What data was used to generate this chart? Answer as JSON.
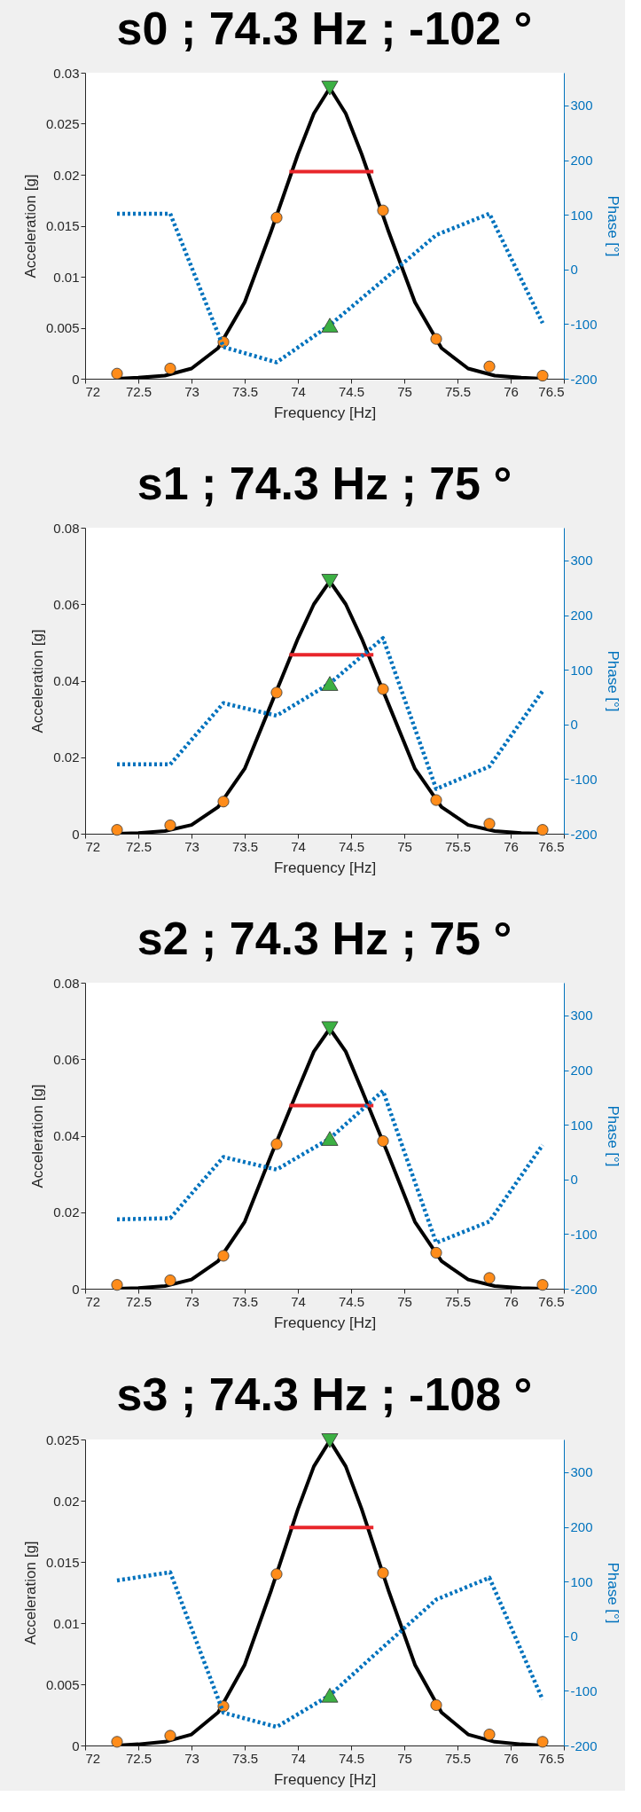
{
  "chart_data": [
    {
      "type": "line",
      "title": "s0 ; 74.3 Hz ; -102 °",
      "xlabel": "Frequency [Hz]",
      "ylabel": "Acceleration [g]",
      "y2label": "Phase [°]",
      "xlim": [
        72,
        76.5
      ],
      "xticks": [
        72,
        72.5,
        73,
        73.5,
        74,
        74.5,
        75,
        75.5,
        76,
        76.5
      ],
      "ylim": [
        0,
        0.03
      ],
      "yticks": [
        0,
        0.005,
        0.01,
        0.015,
        0.02,
        0.025,
        0.03
      ],
      "y2lim": [
        -200,
        360
      ],
      "y2ticks": [
        -200,
        -100,
        0,
        100,
        200,
        300
      ],
      "series": [
        {
          "color": "#000000",
          "x": [
            72.3,
            72.5,
            72.75,
            73,
            73.25,
            73.5,
            73.75,
            74,
            74.15,
            74.3,
            74.45,
            74.6,
            74.85,
            75.1,
            75.35,
            75.6,
            75.85,
            76.1,
            76.3
          ],
          "values": [
            0,
            0.0001,
            0.0003,
            0.001,
            0.003,
            0.0075,
            0.0145,
            0.022,
            0.026,
            0.0285,
            0.026,
            0.022,
            0.0145,
            0.0075,
            0.003,
            0.001,
            0.0003,
            0.0001,
            0
          ]
        },
        {
          "color": "#e8262b",
          "x": [
            73.92,
            74.71
          ],
          "values": [
            0.0203,
            0.0203
          ]
        },
        {
          "type": "scatter",
          "color": "#ff8c1a",
          "marker": "circle",
          "x": [
            72.3,
            72.8,
            73.3,
            73.8,
            74.8,
            75.3,
            75.8,
            76.3
          ],
          "values": [
            0.0005,
            0.001,
            0.0036,
            0.0158,
            0.0165,
            0.0039,
            0.0012,
            0.0003
          ]
        },
        {
          "type": "scatter",
          "color": "#3cb043",
          "marker": "triangle-down",
          "x": [
            74.3
          ],
          "values": [
            0.0285
          ]
        },
        {
          "axis": "y2",
          "color": "#0072bd",
          "line_style": "dotted",
          "x": [
            72.3,
            72.8,
            73.3,
            73.8,
            74.3,
            74.8,
            75.3,
            75.8,
            76.3
          ],
          "values": [
            102,
            102,
            -142,
            -170,
            -102,
            -20,
            63,
            102,
            -98
          ]
        },
        {
          "type": "scatter",
          "axis": "y2",
          "color": "#3cb043",
          "marker": "triangle",
          "x": [
            74.3
          ],
          "values": [
            -102
          ]
        }
      ]
    },
    {
      "type": "line",
      "title": "s1 ; 74.3 Hz ; 75 °",
      "xlabel": "Frequency [Hz]",
      "ylabel": "Acceleration [g]",
      "y2label": "Phase [°]",
      "xlim": [
        72,
        76.5
      ],
      "xticks": [
        72,
        72.5,
        73,
        73.5,
        74,
        74.5,
        75,
        75.5,
        76,
        76.5
      ],
      "ylim": [
        0,
        0.08
      ],
      "yticks": [
        0,
        0.02,
        0.04,
        0.06,
        0.08
      ],
      "y2lim": [
        -200,
        360
      ],
      "y2ticks": [
        -200,
        -100,
        0,
        100,
        200,
        300
      ],
      "series": [
        {
          "color": "#000000",
          "x": [
            72.3,
            72.5,
            72.75,
            73,
            73.25,
            73.5,
            73.75,
            74,
            74.15,
            74.3,
            74.45,
            74.6,
            74.85,
            75.1,
            75.35,
            75.6,
            75.85,
            76.1,
            76.3
          ],
          "values": [
            0,
            0.0002,
            0.0007,
            0.0023,
            0.007,
            0.017,
            0.034,
            0.051,
            0.06,
            0.066,
            0.06,
            0.051,
            0.034,
            0.017,
            0.007,
            0.0023,
            0.0007,
            0.0002,
            0
          ]
        },
        {
          "color": "#e8262b",
          "x": [
            73.92,
            74.71
          ],
          "values": [
            0.0468,
            0.0468
          ]
        },
        {
          "type": "scatter",
          "color": "#ff8c1a",
          "marker": "circle",
          "x": [
            72.3,
            72.8,
            73.3,
            73.8,
            74.8,
            75.3,
            75.8,
            76.3
          ],
          "values": [
            0.001,
            0.0022,
            0.0084,
            0.0369,
            0.0378,
            0.0088,
            0.0026,
            0.001
          ]
        },
        {
          "type": "scatter",
          "color": "#3cb043",
          "marker": "triangle-down",
          "x": [
            74.3
          ],
          "values": [
            0.066
          ]
        },
        {
          "axis": "y2",
          "color": "#0072bd",
          "line_style": "dotted",
          "x": [
            72.3,
            72.8,
            73.3,
            73.8,
            74.3,
            74.8,
            75.3,
            75.8,
            76.3
          ],
          "values": [
            -73,
            -73,
            39,
            16,
            75,
            158,
            -118,
            -77,
            61
          ]
        },
        {
          "type": "scatter",
          "axis": "y2",
          "color": "#3cb043",
          "marker": "triangle",
          "x": [
            74.3
          ],
          "values": [
            75
          ]
        }
      ]
    },
    {
      "type": "line",
      "title": "s2 ; 74.3 Hz ; 75 °",
      "xlabel": "Frequency [Hz]",
      "ylabel": "Acceleration [g]",
      "y2label": "Phase [°]",
      "xlim": [
        72,
        76.5
      ],
      "xticks": [
        72,
        72.5,
        73,
        73.5,
        74,
        74.5,
        75,
        75.5,
        76,
        76.5
      ],
      "ylim": [
        0,
        0.08
      ],
      "yticks": [
        0,
        0.02,
        0.04,
        0.06,
        0.08
      ],
      "y2lim": [
        -200,
        360
      ],
      "y2ticks": [
        -200,
        -100,
        0,
        100,
        200,
        300
      ],
      "series": [
        {
          "color": "#000000",
          "x": [
            72.3,
            72.5,
            72.75,
            73,
            73.25,
            73.5,
            73.75,
            74,
            74.15,
            74.3,
            74.45,
            74.6,
            74.85,
            75.1,
            75.35,
            75.6,
            75.85,
            76.1,
            76.3
          ],
          "values": [
            0,
            0.0002,
            0.0007,
            0.0024,
            0.0072,
            0.0175,
            0.035,
            0.052,
            0.062,
            0.068,
            0.062,
            0.052,
            0.035,
            0.0175,
            0.0072,
            0.0024,
            0.0007,
            0.0002,
            0
          ]
        },
        {
          "color": "#e8262b",
          "x": [
            73.92,
            74.71
          ],
          "values": [
            0.0479,
            0.0479
          ]
        },
        {
          "type": "scatter",
          "color": "#ff8c1a",
          "marker": "circle",
          "x": [
            72.3,
            72.8,
            73.3,
            73.8,
            74.8,
            75.3,
            75.8,
            76.3
          ],
          "values": [
            0.001,
            0.0022,
            0.0086,
            0.0378,
            0.0386,
            0.0094,
            0.0028,
            0.001
          ]
        },
        {
          "type": "scatter",
          "color": "#3cb043",
          "marker": "triangle-down",
          "x": [
            74.3
          ],
          "values": [
            0.068
          ]
        },
        {
          "axis": "y2",
          "color": "#0072bd",
          "line_style": "dotted",
          "x": [
            72.3,
            72.8,
            73.3,
            73.8,
            74.3,
            74.8,
            75.3,
            75.8,
            76.3
          ],
          "values": [
            -73,
            -71,
            41,
            18,
            75,
            162,
            -116,
            -77,
            63
          ]
        },
        {
          "type": "scatter",
          "axis": "y2",
          "color": "#3cb043",
          "marker": "triangle",
          "x": [
            74.3
          ],
          "values": [
            75
          ]
        }
      ]
    },
    {
      "type": "line",
      "title": "s3 ; 74.3 Hz ; -108 °",
      "xlabel": "Frequency [Hz]",
      "ylabel": "Acceleration [g]",
      "y2label": "Phase [°]",
      "xlim": [
        72,
        76.5
      ],
      "xticks": [
        72,
        72.5,
        73,
        73.5,
        74,
        74.5,
        75,
        75.5,
        76,
        76.5
      ],
      "ylim": [
        0,
        0.025
      ],
      "yticks": [
        0,
        0.005,
        0.01,
        0.015,
        0.02,
        0.025
      ],
      "y2lim": [
        -200,
        360
      ],
      "y2ticks": [
        -200,
        -100,
        0,
        100,
        200,
        300
      ],
      "series": [
        {
          "color": "#000000",
          "x": [
            72.3,
            72.5,
            72.75,
            73,
            73.25,
            73.5,
            73.75,
            74,
            74.15,
            74.3,
            74.45,
            74.6,
            74.85,
            75.1,
            75.35,
            75.6,
            75.85,
            76.1,
            76.3
          ],
          "values": [
            0,
            0.0001,
            0.0003,
            0.0009,
            0.0027,
            0.0066,
            0.0127,
            0.0193,
            0.0228,
            0.0249,
            0.0228,
            0.0193,
            0.0127,
            0.0066,
            0.0027,
            0.0009,
            0.0003,
            0.0001,
            0
          ]
        },
        {
          "color": "#e8262b",
          "x": [
            73.92,
            74.71
          ],
          "values": [
            0.0178,
            0.0178
          ]
        },
        {
          "type": "scatter",
          "color": "#ff8c1a",
          "marker": "circle",
          "x": [
            72.3,
            72.8,
            73.3,
            73.8,
            74.8,
            75.3,
            75.8,
            76.3
          ],
          "values": [
            0.0003,
            0.0008,
            0.0032,
            0.014,
            0.0141,
            0.0033,
            0.0009,
            0.0003
          ]
        },
        {
          "type": "scatter",
          "color": "#3cb043",
          "marker": "triangle-down",
          "x": [
            74.3
          ],
          "values": [
            0.0249
          ]
        },
        {
          "axis": "y2",
          "color": "#0072bd",
          "line_style": "dotted",
          "x": [
            72.3,
            72.8,
            73.3,
            73.8,
            74.3,
            74.8,
            75.3,
            75.8,
            76.3
          ],
          "values": [
            102,
            117,
            -140,
            -166,
            -108,
            -20,
            67,
            107,
            -116
          ]
        },
        {
          "type": "scatter",
          "axis": "y2",
          "color": "#3cb043",
          "marker": "triangle",
          "x": [
            74.3
          ],
          "values": [
            -108
          ]
        }
      ]
    }
  ]
}
